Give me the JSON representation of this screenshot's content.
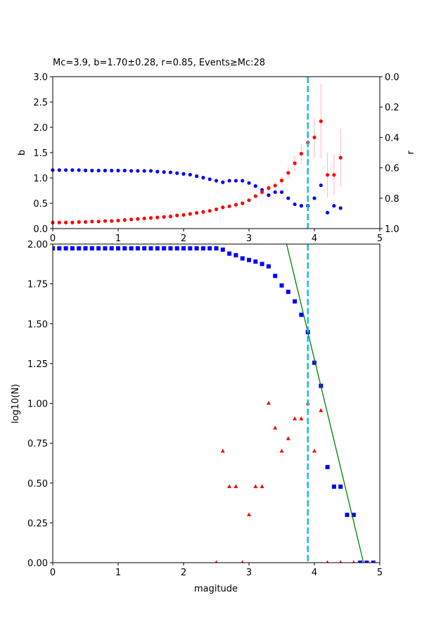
{
  "chart_data": [
    {
      "type": "scatter",
      "title": "Mc=3.9, b=1.70±0.28, r=0.85, Events≥Mc:28",
      "xlabel": "",
      "ylabel": "b",
      "ylabel_right": "r",
      "xlim": [
        0,
        5
      ],
      "ylim": [
        0,
        3
      ],
      "ylim_right": [
        1,
        0
      ],
      "xticks": [
        "0",
        "1",
        "2",
        "3",
        "4",
        "5"
      ],
      "yticks": [
        "0.0",
        "0.5",
        "1.0",
        "1.5",
        "2.0",
        "2.5",
        "3.0"
      ],
      "yticks_right": [
        "0.0",
        "0.2",
        "0.4",
        "0.6",
        "0.8",
        "1.0"
      ],
      "mc": 3.9,
      "series": [
        {
          "name": "b",
          "color": "#ff0000",
          "x": [
            0,
            0.1,
            0.2,
            0.3,
            0.4,
            0.5,
            0.6,
            0.7,
            0.8,
            0.9,
            1.0,
            1.1,
            1.2,
            1.3,
            1.4,
            1.5,
            1.6,
            1.7,
            1.8,
            1.9,
            2.0,
            2.1,
            2.2,
            2.3,
            2.4,
            2.5,
            2.6,
            2.7,
            2.8,
            2.9,
            3.0,
            3.1,
            3.2,
            3.3,
            3.4,
            3.5,
            3.6,
            3.7,
            3.8,
            3.9,
            4.0,
            4.1,
            4.2,
            4.3,
            4.4
          ],
          "y": [
            0.12,
            0.12,
            0.12,
            0.12,
            0.13,
            0.13,
            0.14,
            0.14,
            0.15,
            0.15,
            0.16,
            0.17,
            0.18,
            0.19,
            0.2,
            0.21,
            0.22,
            0.23,
            0.24,
            0.26,
            0.27,
            0.29,
            0.31,
            0.33,
            0.35,
            0.38,
            0.42,
            0.44,
            0.47,
            0.5,
            0.56,
            0.64,
            0.72,
            0.8,
            0.85,
            0.95,
            1.1,
            1.29,
            1.48,
            1.7,
            1.8,
            2.12,
            1.06,
            1.06,
            1.4
          ],
          "err": [
            0,
            0,
            0,
            0,
            0,
            0,
            0,
            0,
            0,
            0,
            0,
            0,
            0,
            0,
            0,
            0,
            0,
            0,
            0,
            0,
            0,
            0,
            0,
            0,
            0,
            0,
            0,
            0,
            0,
            0.02,
            0.03,
            0.04,
            0.05,
            0.06,
            0.07,
            0.08,
            0.12,
            0.15,
            0.2,
            0.28,
            0.4,
            0.73,
            0.44,
            0.4,
            0.57
          ]
        },
        {
          "name": "r",
          "color": "#0000ff",
          "axis": "right",
          "x": [
            0,
            0.1,
            0.2,
            0.3,
            0.4,
            0.5,
            0.6,
            0.7,
            0.8,
            0.9,
            1.0,
            1.1,
            1.2,
            1.3,
            1.4,
            1.5,
            1.6,
            1.7,
            1.8,
            1.9,
            2.0,
            2.1,
            2.2,
            2.3,
            2.4,
            2.5,
            2.6,
            2.7,
            2.8,
            2.9,
            3.0,
            3.1,
            3.2,
            3.3,
            3.4,
            3.5,
            3.6,
            3.7,
            3.8,
            3.9,
            4.0,
            4.1,
            4.2,
            4.3,
            4.4
          ],
          "y": [
            0.615,
            0.615,
            0.615,
            0.615,
            0.615,
            0.617,
            0.618,
            0.618,
            0.618,
            0.618,
            0.618,
            0.618,
            0.62,
            0.62,
            0.62,
            0.62,
            0.625,
            0.628,
            0.63,
            0.635,
            0.64,
            0.645,
            0.655,
            0.665,
            0.675,
            0.685,
            0.695,
            0.685,
            0.685,
            0.685,
            0.7,
            0.72,
            0.745,
            0.78,
            0.76,
            0.76,
            0.8,
            0.84,
            0.85,
            0.85,
            0.8,
            0.715,
            0.895,
            0.85,
            0.865
          ]
        }
      ]
    },
    {
      "type": "scatter",
      "title": "",
      "xlabel": "magitude",
      "ylabel": "log10(N)",
      "xlim": [
        0,
        5
      ],
      "ylim": [
        0,
        2
      ],
      "xticks": [
        "0",
        "1",
        "2",
        "3",
        "4",
        "5"
      ],
      "yticks": [
        "0.00",
        "0.25",
        "0.50",
        "0.75",
        "1.00",
        "1.25",
        "1.50",
        "1.75",
        "2.00"
      ],
      "mc": 3.9,
      "fit": {
        "a": 8.077,
        "b": 1.7,
        "color": "#008000"
      },
      "series": [
        {
          "name": "cumulative",
          "marker": "square",
          "color": "#0000ff",
          "x": [
            0,
            0.1,
            0.2,
            0.3,
            0.4,
            0.5,
            0.6,
            0.7,
            0.8,
            0.9,
            1.0,
            1.1,
            1.2,
            1.3,
            1.4,
            1.5,
            1.6,
            1.7,
            1.8,
            1.9,
            2.0,
            2.1,
            2.2,
            2.3,
            2.4,
            2.5,
            2.6,
            2.7,
            2.8,
            2.9,
            3.0,
            3.1,
            3.2,
            3.3,
            3.4,
            3.5,
            3.6,
            3.7,
            3.8,
            3.9,
            4.0,
            4.1,
            4.2,
            4.3,
            4.4,
            4.5,
            4.6,
            4.7,
            4.8,
            4.9
          ],
          "y": [
            1.973,
            1.973,
            1.973,
            1.973,
            1.973,
            1.973,
            1.973,
            1.973,
            1.973,
            1.973,
            1.973,
            1.973,
            1.973,
            1.973,
            1.973,
            1.973,
            1.973,
            1.973,
            1.973,
            1.973,
            1.973,
            1.973,
            1.973,
            1.973,
            1.973,
            1.973,
            1.965,
            1.94,
            1.93,
            1.91,
            1.9,
            1.89,
            1.875,
            1.86,
            1.8,
            1.74,
            1.7,
            1.64,
            1.556,
            1.447,
            1.255,
            1.11,
            0.6,
            0.477,
            0.477,
            0.3,
            0.3,
            0,
            0,
            0
          ]
        },
        {
          "name": "non-cumulative",
          "marker": "triangle",
          "color": "#ff0000",
          "x": [
            2.5,
            2.6,
            2.7,
            2.8,
            2.9,
            3.0,
            3.1,
            3.2,
            3.3,
            3.4,
            3.5,
            3.6,
            3.7,
            3.8,
            3.9,
            4.0,
            4.1,
            4.2,
            4.4,
            4.6
          ],
          "y": [
            0,
            0.7,
            0.477,
            0.477,
            0,
            0.3,
            0.477,
            0.477,
            1.0,
            0.845,
            0.7,
            0.778,
            0.903,
            0.903,
            1.0,
            0.7,
            0.954,
            0,
            0,
            0
          ]
        }
      ]
    }
  ]
}
